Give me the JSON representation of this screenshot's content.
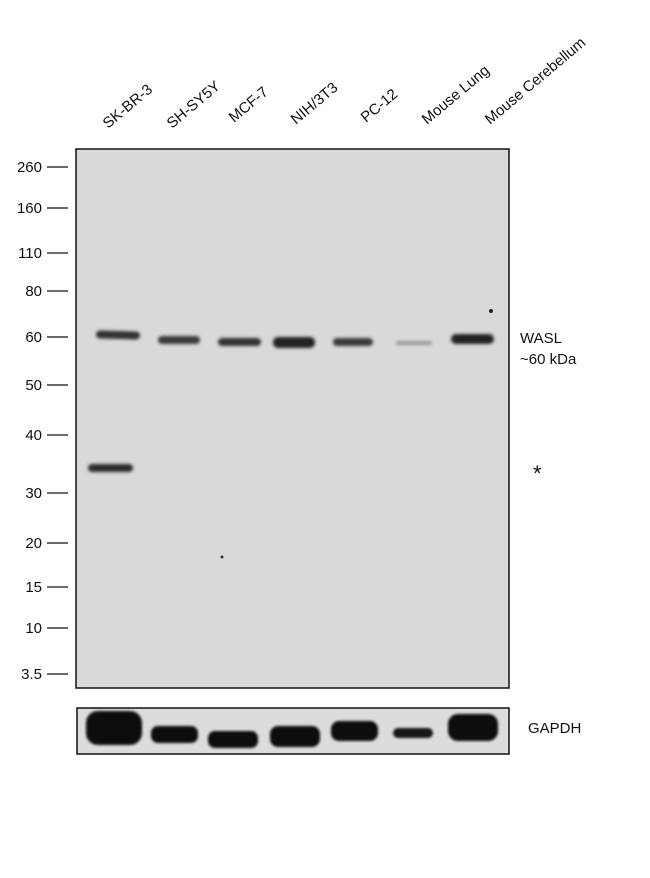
{
  "lanes": [
    "SK-BR-3",
    "SH-SY5Y",
    "MCF-7",
    "NIH/3T3",
    "PC-12",
    "Mouse Lung",
    "Mouse Cerebellum"
  ],
  "markers": [
    "260",
    "160",
    "110",
    "80",
    "60",
    "50",
    "40",
    "30",
    "20",
    "15",
    "10",
    "3.5"
  ],
  "band_labels": {
    "target": "WASL",
    "size": "~60 kDa",
    "nonspecific": "*"
  },
  "loading_control": "GAPDH"
}
